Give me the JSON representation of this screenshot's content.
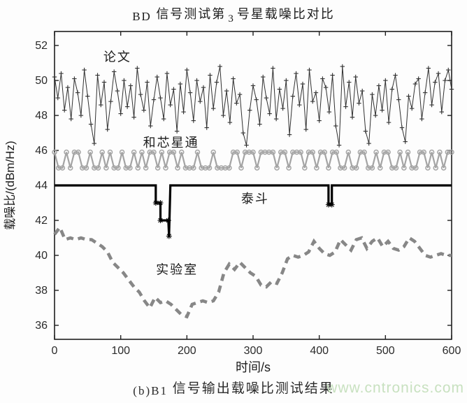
{
  "title": {
    "p1": "BD",
    "p2": "信号测试第",
    "p3": "3",
    "p4": "号星载噪比对比"
  },
  "caption": {
    "p1": "(b)B1",
    "p2": "信号输出载噪比测试结果"
  },
  "watermark": {
    "text": "www.cntronics.com",
    "color": "#c6e0bd"
  },
  "chart_data": {
    "type": "line",
    "title": "BD 信号测试第3号星载噪比对比",
    "xlabel": "时间/s",
    "ylabel": "载噪比/(dBm/Hz)",
    "xlim": [
      0,
      600
    ],
    "ylim": [
      35.2,
      52.8
    ],
    "xticks": [
      0,
      100,
      200,
      300,
      400,
      500,
      600
    ],
    "yticks": [
      36,
      38,
      40,
      42,
      44,
      46,
      48,
      50,
      52
    ],
    "grid": false,
    "frame": true,
    "legend_position": "in-plot-text-labels",
    "annotations": [
      {
        "id": "paper",
        "text": "论文",
        "t": 95,
        "v": 51.1
      },
      {
        "id": "unicore",
        "text": "和芯星通",
        "t": 176,
        "v": 46.2
      },
      {
        "id": "taidou",
        "text": "泰斗",
        "t": 303,
        "v": 43.0
      },
      {
        "id": "lab",
        "text": "实验室",
        "t": 185,
        "v": 38.95
      }
    ],
    "series": [
      {
        "id": "unicore",
        "name": "和芯星通",
        "color": "#a4a4a4",
        "width": 2.2,
        "marker": "circle",
        "marker_size": 3,
        "style": "solid",
        "t_start": 0,
        "t_interval": 6,
        "values": [
          45.9,
          45,
          45,
          45.9,
          45,
          45.9,
          45.9,
          45,
          45,
          45.9,
          45,
          45,
          45.9,
          45,
          45.9,
          45,
          45,
          45.9,
          45,
          45,
          45.9,
          45,
          45.9,
          45,
          45.9,
          45.9,
          45,
          45.9,
          45,
          45.9,
          45.9,
          45,
          45.9,
          45,
          45,
          45,
          45.9,
          45,
          45,
          45,
          45.9,
          45,
          45,
          45,
          45,
          45.9,
          45.9,
          45,
          45.9,
          45.9,
          45.9,
          45,
          45.9,
          45.9,
          45.9,
          45.9,
          45,
          45.9,
          45.9,
          45,
          45.9,
          45.9,
          45.9,
          45,
          45.9,
          45.9,
          45,
          45.9,
          45.9,
          45,
          45.9,
          45.9,
          45,
          45,
          45.9,
          45,
          45,
          45.9,
          45.9,
          45,
          45,
          45.9,
          45,
          45.9,
          45.9,
          45,
          45,
          45.9,
          45,
          45.9,
          45,
          45,
          45.9,
          45.9,
          45,
          45.9,
          45,
          45.9,
          45,
          45.9,
          45.9
        ]
      },
      {
        "id": "lab",
        "name": "实验室",
        "color": "#878787",
        "width": 4.6,
        "marker": "none",
        "style": "dashed",
        "dash": [
          10,
          7
        ],
        "t_start": 0,
        "t_interval": 8,
        "values": [
          41.2,
          41.6,
          40.9,
          41.0,
          40.9,
          41.0,
          40.9,
          40.9,
          40.7,
          40.5,
          40.2,
          39.6,
          39.3,
          39.0,
          38.6,
          38.2,
          37.9,
          37.4,
          37.0,
          37.6,
          37.3,
          37.4,
          37.2,
          36.9,
          36.6,
          36.5,
          37.2,
          37.3,
          37.4,
          37.3,
          37.4,
          37.9,
          39.0,
          39.5,
          39.2,
          39.6,
          39.3,
          39.0,
          38.8,
          38.3,
          38.2,
          38.5,
          38.4,
          39.0,
          39.8,
          40.0,
          39.9,
          40.0,
          40.2,
          40.8,
          40.4,
          40.1,
          40.0,
          40.2,
          40.9,
          40.6,
          40.3,
          40.9,
          41.0,
          40.4,
          40.8,
          41.0,
          40.5,
          40.8,
          40.4,
          40.3,
          40.5,
          41.0,
          40.8,
          40.4,
          40.0,
          39.9,
          40.0,
          40.1,
          40.0,
          40.0
        ]
      },
      {
        "id": "taidou",
        "name": "泰斗",
        "color": "#000000",
        "width": 3.2,
        "marker": "star-at-points",
        "marker_size": 4,
        "style": "solid",
        "points": [
          [
            0,
            44
          ],
          [
            153,
            44
          ],
          [
            153,
            43
          ],
          [
            160,
            43
          ],
          [
            160,
            42
          ],
          [
            172,
            42
          ],
          [
            173,
            41.1
          ],
          [
            175,
            44
          ],
          [
            414,
            44
          ],
          [
            414,
            42.9
          ],
          [
            419,
            42.9
          ],
          [
            419,
            44
          ],
          [
            600,
            44
          ]
        ],
        "marker_points": [
          [
            153,
            43
          ],
          [
            160,
            43
          ],
          [
            160,
            42
          ],
          [
            172,
            42
          ],
          [
            173,
            41.1
          ],
          [
            414,
            42.9
          ],
          [
            419,
            42.9
          ]
        ]
      },
      {
        "id": "paper",
        "name": "论文",
        "color": "#303030",
        "width": 1,
        "marker": "plus",
        "marker_size": 3.2,
        "style": "solid",
        "t_start": 0,
        "t_interval": 5,
        "values": [
          50.2,
          49.0,
          50.4,
          48.3,
          49.6,
          47.8,
          50.1,
          49.3,
          48.0,
          50.6,
          49.1,
          47.5,
          46.4,
          50.3,
          48.6,
          49.9,
          47.2,
          48.8,
          50.5,
          49.4,
          48.1,
          50.0,
          48.5,
          49.7,
          47.9,
          50.7,
          49.2,
          48.3,
          49.9,
          47.4,
          48.9,
          50.2,
          49.0,
          47.8,
          50.4,
          48.6,
          49.5,
          47.1,
          49.8,
          48.2,
          50.6,
          49.3,
          47.7,
          50.0,
          48.8,
          49.6,
          47.3,
          50.3,
          48.4,
          49.9,
          50.8,
          48.0,
          49.4,
          47.6,
          50.1,
          48.7,
          49.2,
          47.0,
          46.3,
          48.3,
          49.7,
          48.9,
          47.5,
          50.2,
          49.0,
          48.1,
          50.7,
          47.8,
          49.5,
          48.4,
          50.0,
          46.9,
          49.1,
          50.4,
          48.6,
          49.8,
          47.2,
          50.6,
          48.8,
          49.3,
          47.7,
          50.1,
          49.6,
          48.2,
          50.3,
          47.4,
          46.3,
          50.8,
          48.5,
          49.9,
          47.9,
          50.2,
          48.7,
          49.4,
          47.1,
          46.4,
          49.2,
          48.0,
          49.7,
          48.3,
          50.0,
          47.6,
          49.5,
          50.3,
          48.9,
          47.3,
          46.5,
          49.1,
          48.4,
          49.8,
          50.1,
          47.8,
          49.3,
          50.7,
          48.6,
          49.9,
          50.4,
          48.2,
          50.0,
          50.6,
          49.5
        ]
      }
    ]
  }
}
